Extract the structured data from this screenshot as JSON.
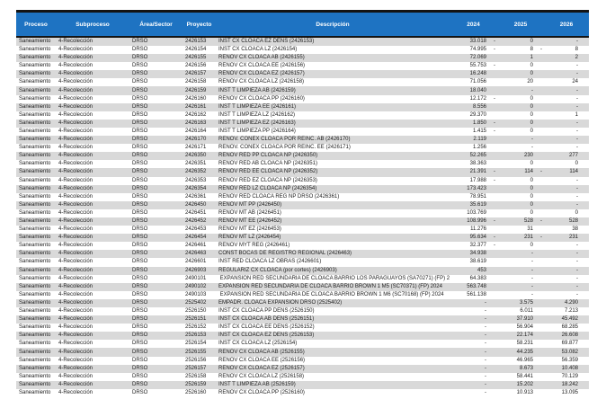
{
  "colors": {
    "header_bg": "#1E73C2",
    "header_text": "#FFFFFF",
    "row_band": "#D9D9D9",
    "row_plain": "#FFFFFF",
    "border_dark": "#141414",
    "body_text": "#1A1A1A"
  },
  "table": {
    "columns": [
      "Proceso",
      "Subproceso",
      "Área/Sector",
      "Proyecto",
      "Descripción",
      "2024",
      "2025",
      "2026"
    ],
    "rows": [
      {
        "proceso": "Saneamiento",
        "subproceso": "4-Recolección",
        "area": "DRSO",
        "proyecto": "2426153",
        "descripcion": "INST CX CLOACA EZ DENS (2426153)",
        "y2024": "33.018 -",
        "y2025": "0",
        "y2026": "-"
      },
      {
        "proceso": "Saneamiento",
        "subproceso": "4-Recolección",
        "area": "DRSO",
        "proyecto": "2426154",
        "descripcion": "INST CX CLOACA LZ (2426154)",
        "y2024": "74.995 -",
        "y2025": "8 -",
        "y2026": "8"
      },
      {
        "proceso": "Saneamiento",
        "subproceso": "4-Recolección",
        "area": "DRSO",
        "proyecto": "2426155",
        "descripcion": "RENOV CX CLOACA AB (2426155)",
        "y2024": "72.069",
        "y2025": "1",
        "y2026": "2"
      },
      {
        "proceso": "Saneamiento",
        "subproceso": "4-Recolección",
        "area": "DRSO",
        "proyecto": "2426156",
        "descripcion": "RENOV CX CLOACA EE (2426156)",
        "y2024": "55.753 -",
        "y2025": "0",
        "y2026": "-"
      },
      {
        "proceso": "Saneamiento",
        "subproceso": "4-Recolección",
        "area": "DRSO",
        "proyecto": "2426157",
        "descripcion": "RENOV CX CLOACA EZ (2426157)",
        "y2024": "16.248",
        "y2025": "0",
        "y2026": "-"
      },
      {
        "proceso": "Saneamiento",
        "subproceso": "4-Recolección",
        "area": "DRSO",
        "proyecto": "2426158",
        "descripcion": "RENOV CX CLOACA LZ (2426158)",
        "y2024": "71.056",
        "y2025": "20",
        "y2026": "24"
      },
      {
        "proceso": "Saneamiento",
        "subproceso": "4-Recolección",
        "area": "DRSO",
        "proyecto": "2426159",
        "descripcion": "INST T LIMPIEZA AB (2426159)",
        "y2024": "18.040",
        "y2025": "-",
        "y2026": "-"
      },
      {
        "proceso": "Saneamiento",
        "subproceso": "4-Recolección",
        "area": "DRSO",
        "proyecto": "2426160",
        "descripcion": "RENOV CX CLOACA PP (2426160)",
        "y2024": "12.172 -",
        "y2025": "0",
        "y2026": "-"
      },
      {
        "proceso": "Saneamiento",
        "subproceso": "4-Recolección",
        "area": "DRSO",
        "proyecto": "2426161",
        "descripcion": "INST T LIMPIEZA EE (2426161)",
        "y2024": "8.556",
        "y2025": "0",
        "y2026": "-"
      },
      {
        "proceso": "Saneamiento",
        "subproceso": "4-Recolección",
        "area": "DRSO",
        "proyecto": "2426162",
        "descripcion": "INST T LIMPIEZA LZ (2426162)",
        "y2024": "29.370",
        "y2025": "0",
        "y2026": "1"
      },
      {
        "proceso": "Saneamiento",
        "subproceso": "4-Recolección",
        "area": "DRSO",
        "proyecto": "2426163",
        "descripcion": "INST T LIMPIEZA EZ (2426163)",
        "y2024": "1.850 -",
        "y2025": "0",
        "y2026": "-"
      },
      {
        "proceso": "Saneamiento",
        "subproceso": "4-Recolección",
        "area": "DRSO",
        "proyecto": "2426164",
        "descripcion": "INST T LIMPIEZA PP (2426164)",
        "y2024": "1.415 -",
        "y2025": "0",
        "y2026": "-"
      },
      {
        "proceso": "Saneamiento",
        "subproceso": "4-Recolección",
        "area": "DRSO",
        "proyecto": "2426170",
        "descripcion": "RENOV. CONEX CLOACA POR REINC. AB (2426170)",
        "y2024": "2.119",
        "y2025": "-",
        "y2026": "-"
      },
      {
        "proceso": "Saneamiento",
        "subproceso": "4-Recolección",
        "area": "DRSO",
        "proyecto": "2426171",
        "descripcion": "RENOV. CONEX CLOACA POR REINC. EE (2426171)",
        "y2024": "1.256",
        "y2025": "-",
        "y2026": "-"
      },
      {
        "proceso": "Saneamiento",
        "subproceso": "4-Recolección",
        "area": "DRSO",
        "proyecto": "2426350",
        "descripcion": "RENOV RED PP CLOACA NP (2426350)",
        "y2024": "52.265",
        "y2025": "230",
        "y2026": "277"
      },
      {
        "proceso": "Saneamiento",
        "subproceso": "4-Recolección",
        "area": "DRSO",
        "proyecto": "2426351",
        "descripcion": "RENOV RED AB CLOACA NP (2426351)",
        "y2024": "38.363",
        "y2025": "0",
        "y2026": "0"
      },
      {
        "proceso": "Saneamiento",
        "subproceso": "4-Recolección",
        "area": "DRSO",
        "proyecto": "2426352",
        "descripcion": "RENOV RED EE CLOACA NP (2426352)",
        "y2024": "21.391 -",
        "y2025": "114 -",
        "y2026": "114"
      },
      {
        "proceso": "Saneamiento",
        "subproceso": "4-Recolección",
        "area": "DRSO",
        "proyecto": "2426353",
        "descripcion": "RENOV RED EZ CLOACA NP (2426353)",
        "y2024": "17.988 -",
        "y2025": "0",
        "y2026": "-"
      },
      {
        "proceso": "Saneamiento",
        "subproceso": "4-Recolección",
        "area": "DRSO",
        "proyecto": "2426354",
        "descripcion": "RENOV RED LZ CLOACA NP (2426354)",
        "y2024": "173.423",
        "y2025": "0",
        "y2026": "-"
      },
      {
        "proceso": "Saneamiento",
        "subproceso": "4-Recolección",
        "area": "DRSO",
        "proyecto": "2426361",
        "descripcion": "RENOV RED CLOACA REG NP DRSO (2426361)",
        "y2024": "78.951",
        "y2025": "0",
        "y2026": "-"
      },
      {
        "proceso": "Saneamiento",
        "subproceso": "4-Recolección",
        "area": "DRSO",
        "proyecto": "2426450",
        "descripcion": "RENOV MT PP (2426450)",
        "y2024": "35.619",
        "y2025": "0",
        "y2026": "-"
      },
      {
        "proceso": "Saneamiento",
        "subproceso": "4-Recolección",
        "area": "DRSO",
        "proyecto": "2426451",
        "descripcion": "RENOV MT AB (2426451)",
        "y2024": "103.769",
        "y2025": "0",
        "y2026": "0"
      },
      {
        "proceso": "Saneamiento",
        "subproceso": "4-Recolección",
        "area": "DRSO",
        "proyecto": "2426452",
        "descripcion": "RENOV MT EE (2426452)",
        "y2024": "108.996 -",
        "y2025": "528 -",
        "y2026": "528"
      },
      {
        "proceso": "Saneamiento",
        "subproceso": "4-Recolección",
        "area": "DRSO",
        "proyecto": "2426453",
        "descripcion": "RENOV MT EZ (2426453)",
        "y2024": "11.276",
        "y2025": "31",
        "y2026": "38"
      },
      {
        "proceso": "Saneamiento",
        "subproceso": "4-Recolección",
        "area": "DRSO",
        "proyecto": "2426454",
        "descripcion": "RENOV MT LZ (2426454)",
        "y2024": "95.634 -",
        "y2025": "231 -",
        "y2026": "231"
      },
      {
        "proceso": "Saneamiento",
        "subproceso": "4-Recolección",
        "area": "DRSO",
        "proyecto": "2426461",
        "descripcion": "RENOV MYT REG (2426461)",
        "y2024": "32.377 -",
        "y2025": "0",
        "y2026": "-"
      },
      {
        "proceso": "Saneamiento",
        "subproceso": "4-Recolección",
        "area": "DRSO",
        "proyecto": "2426463",
        "descripcion": "CONST BOCAS DE REGISTRO REGIONAL (2426463)",
        "y2024": "34.938",
        "y2025": "-",
        "y2026": "-"
      },
      {
        "proceso": "Saneamiento",
        "subproceso": "4-Recolección",
        "area": "DRSO",
        "proyecto": "2426601",
        "descripcion": "INST RED CLOACA LZ OBRAS (2426601)",
        "y2024": "38.619",
        "y2025": "-",
        "y2026": "-"
      },
      {
        "proceso": "Saneamiento",
        "subproceso": "4-Recolección",
        "area": "DRSO",
        "proyecto": "2426903",
        "descripcion": "REGULARIZ CX CLOACA (por cortes) (2426903)",
        "y2024": "453",
        "y2025": "-",
        "y2026": "-"
      },
      {
        "proceso": "Saneamiento",
        "subproceso": "4-Recolección",
        "area": "DRSO",
        "proyecto": "2490101",
        "descripcion": " EXPANSIÓN RED SECUNDARIA DE CLOACA BARRIO LOS PARAGUAYOS (SA70271) (FP) 2024",
        "y2024": "64.383",
        "y2025": "-",
        "y2026": "-"
      },
      {
        "proceso": "Saneamiento",
        "subproceso": "4-Recolección",
        "area": "DRSO",
        "proyecto": "2490102",
        "descripcion": "EXPANSIÓN RED SECUNDARIA DE CLOACA BARRIO BROWN 1 M5 (SC70371) (FP) 2024",
        "y2024": "563.748",
        "y2025": "-",
        "y2026": "-"
      },
      {
        "proceso": "Saneamiento",
        "subproceso": "4-Recolección",
        "area": "DRSO",
        "proyecto": "2490103",
        "descripcion": " EXPANSIÓN RED SECUNDARIA DE CLOACA BARRIO BROWN 1 M6 (SC70168) (FP) 2024",
        "y2024": "561.138",
        "y2025": "-",
        "y2026": "-"
      },
      {
        "proceso": "Saneamiento",
        "subproceso": "4-Recolección",
        "area": "DRSO",
        "proyecto": "2525402",
        "descripcion": "EMPADR. CLOACA EXPANSION DRSO (2525402)",
        "y2024": "-",
        "y2025": "3.575",
        "y2026": "4.290"
      },
      {
        "proceso": "Saneamiento",
        "subproceso": "4-Recolección",
        "area": "DRSO",
        "proyecto": "2526150",
        "descripcion": "INST CX CLOACA PP DENS (2526150)",
        "y2024": "-",
        "y2025": "6.011",
        "y2026": "7.213"
      },
      {
        "proceso": "Saneamiento",
        "subproceso": "4-Recolección",
        "area": "DRSO",
        "proyecto": "2526151",
        "descripcion": "INST CX CLOACA AB DENS (2526151)",
        "y2024": "-",
        "y2025": "37.910",
        "y2026": "45.492"
      },
      {
        "proceso": "Saneamiento",
        "subproceso": "4-Recolección",
        "area": "DRSO",
        "proyecto": "2526152",
        "descripcion": "INST CX CLOACA EE DENS (2526152)",
        "y2024": "-",
        "y2025": "56.904",
        "y2026": "68.285"
      },
      {
        "proceso": "Saneamiento",
        "subproceso": "4-Recolección",
        "area": "DRSO",
        "proyecto": "2526153",
        "descripcion": "INST CX CLOACA EZ DENS (2526153)",
        "y2024": "-",
        "y2025": "22.174",
        "y2026": "26.608"
      },
      {
        "proceso": "Saneamiento",
        "subproceso": "4-Recolección",
        "area": "DRSO",
        "proyecto": "2526154",
        "descripcion": "INST CX CLOACA LZ (2526154)",
        "y2024": "-",
        "y2025": "58.231",
        "y2026": "69.877"
      },
      {
        "proceso": "Saneamiento",
        "subproceso": "4-Recolección",
        "area": "DRSO",
        "proyecto": "2526155",
        "descripcion": "RENOV CX CLOACA AB (2526155)",
        "y2024": "-",
        "y2025": "44.235",
        "y2026": "53.082"
      },
      {
        "proceso": "Saneamiento",
        "subproceso": "4-Recolección",
        "area": "DRSO",
        "proyecto": "2526156",
        "descripcion": "RENOV CX CLOACA EE (2526156)",
        "y2024": "-",
        "y2025": "46.965",
        "y2026": "56.359"
      },
      {
        "proceso": "Saneamiento",
        "subproceso": "4-Recolección",
        "area": "DRSO",
        "proyecto": "2526157",
        "descripcion": "RENOV CX CLOACA EZ (2526157)",
        "y2024": "-",
        "y2025": "8.673",
        "y2026": "10.408"
      },
      {
        "proceso": "Saneamiento",
        "subproceso": "4-Recolección",
        "area": "DRSO",
        "proyecto": "2526158",
        "descripcion": "RENOV CX CLOACA LZ (2526158)",
        "y2024": "-",
        "y2025": "58.441",
        "y2026": "70.129"
      },
      {
        "proceso": "Saneamiento",
        "subproceso": "4-Recolección",
        "area": "DRSO",
        "proyecto": "2526159",
        "descripcion": "INST T LIMPIEZA AB (2526159)",
        "y2024": "-",
        "y2025": "15.202",
        "y2026": "18.242"
      },
      {
        "proceso": "Saneamiento",
        "subproceso": "4-Recolección",
        "area": "DRSO",
        "proyecto": "2526160",
        "descripcion": "RENOV CX CLOACA PP (2526160)",
        "y2024": "-",
        "y2025": "10.913",
        "y2026": "13.095"
      }
    ]
  }
}
